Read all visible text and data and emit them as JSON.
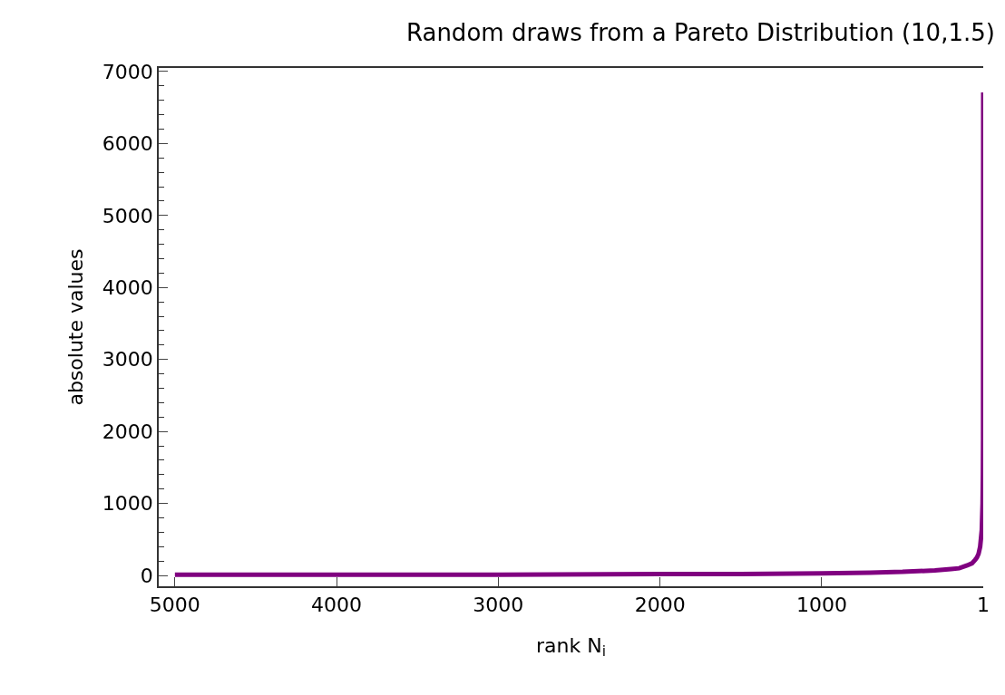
{
  "chart_data": {
    "type": "line",
    "title": "Random draws from a Pareto Distribution (10,1.5)",
    "xlabel": "rank N$_{i}$",
    "ylabel": "absolute values",
    "x": [
      5000,
      4000,
      3000,
      2000,
      1500,
      1000,
      700,
      500,
      300,
      200,
      150,
      100,
      70,
      50,
      40,
      30,
      20,
      10,
      5,
      3,
      2,
      1
    ],
    "series": [
      {
        "color": "#800080",
        "values": [
          10,
          10,
          10,
          20,
          20,
          30,
          40,
          50,
          70,
          90,
          100,
          140,
          170,
          220,
          250,
          300,
          400,
          630,
          1000,
          1400,
          1900,
          6710
        ]
      }
    ],
    "xlim": [
      5100,
      1
    ],
    "xticks": [
      5000,
      4000,
      3000,
      2000,
      1000,
      1
    ],
    "ylim": [
      -150,
      7050
    ],
    "yticks": [
      0,
      {
        "value": 200,
        "label": null
      },
      {
        "value": 400,
        "label": null
      },
      {
        "value": 600,
        "label": null
      },
      {
        "value": 800,
        "label": null
      },
      1000,
      {
        "value": 1200,
        "label": null
      },
      {
        "value": 1400,
        "label": null
      },
      {
        "value": 1600,
        "label": null
      },
      {
        "value": 1800,
        "label": null
      },
      2000,
      {
        "value": 2200,
        "label": null
      },
      {
        "value": 2400,
        "label": null
      },
      {
        "value": 2600,
        "label": null
      },
      {
        "value": 2800,
        "label": null
      },
      3000,
      {
        "value": 3200,
        "label": null
      },
      {
        "value": 3400,
        "label": null
      },
      {
        "value": 3600,
        "label": null
      },
      {
        "value": 3800,
        "label": null
      },
      4000,
      {
        "value": 4200,
        "label": null
      },
      {
        "value": 4400,
        "label": null
      },
      {
        "value": 4600,
        "label": null
      },
      {
        "value": 4800,
        "label": null
      },
      5000,
      {
        "value": 5200,
        "label": null
      },
      {
        "value": 5400,
        "label": null
      },
      {
        "value": 5600,
        "label": null
      },
      {
        "value": 5800,
        "label": null
      },
      6000,
      {
        "value": 6200,
        "label": null
      },
      {
        "value": 6400,
        "label": null
      },
      {
        "value": 6600,
        "label": null
      },
      {
        "value": 6800,
        "label": null
      },
      7000
    ],
    "marker": "none",
    "line_style": "solid"
  }
}
